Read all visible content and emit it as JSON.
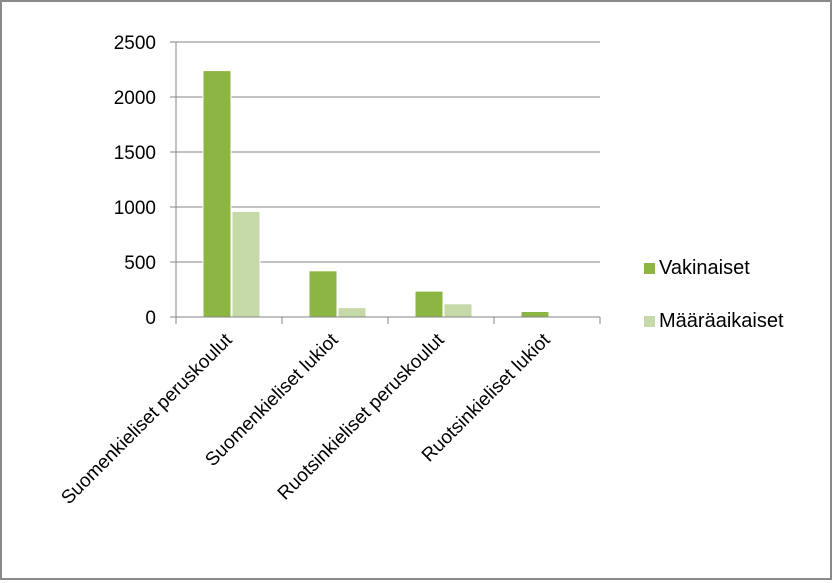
{
  "chart_data": {
    "type": "bar",
    "title": "",
    "xlabel": "",
    "ylabel": "",
    "categories": [
      "Suomenkieliset peruskoulut",
      "Suomenkieliset lukiot",
      "Ruotsinkieliset peruskoulut",
      "Ruotsinkieliset lukiot"
    ],
    "series": [
      {
        "name": "Vakinaiset",
        "values": [
          2240,
          420,
          235,
          50
        ],
        "color": "#8db543"
      },
      {
        "name": "Määräaikaiset",
        "values": [
          960,
          85,
          120,
          5
        ],
        "color": "#c6d9a8"
      }
    ],
    "ylim": [
      0,
      2500
    ],
    "yticks": [
      "0",
      "500",
      "1000",
      "1500",
      "2000",
      "2500"
    ],
    "grid": true,
    "legend_position": "right"
  }
}
